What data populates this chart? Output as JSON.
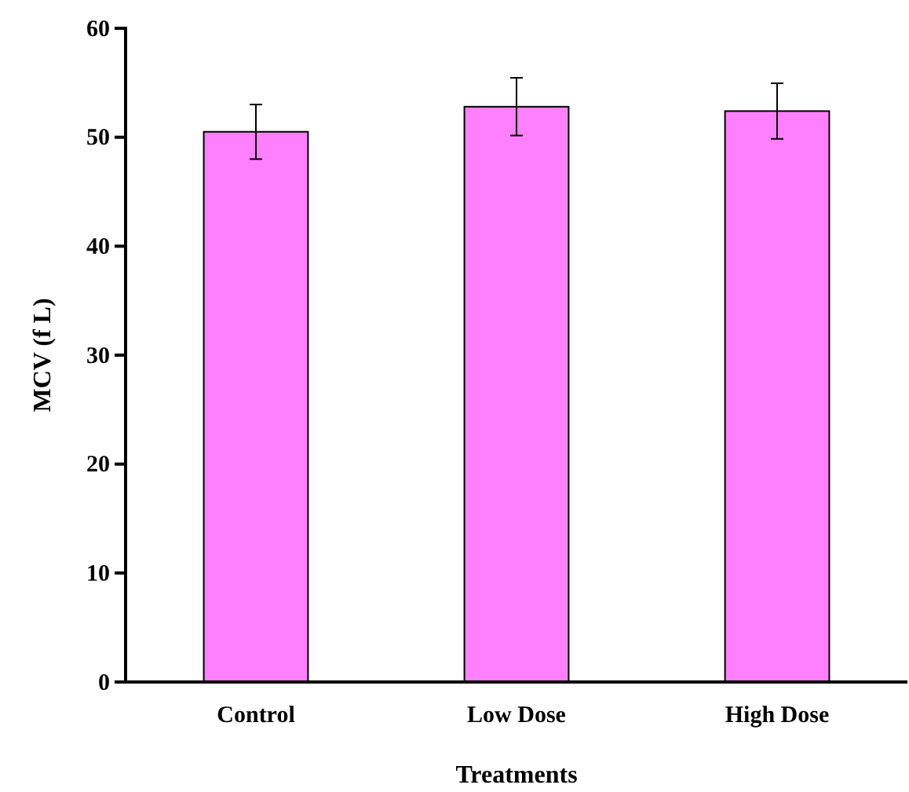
{
  "chart_data": {
    "type": "bar",
    "xlabel": "Treatments",
    "ylabel": "MCV (f L)",
    "categories": [
      "Control",
      "Low Dose",
      "High Dose"
    ],
    "values": [
      50.5,
      52.8,
      52.4
    ],
    "errors": [
      2.5,
      2.65,
      2.55
    ],
    "color": "#ff80ff",
    "ylim": [
      0,
      60
    ],
    "yticks": [
      0,
      10,
      20,
      30,
      40,
      50,
      60
    ],
    "grid": false
  }
}
